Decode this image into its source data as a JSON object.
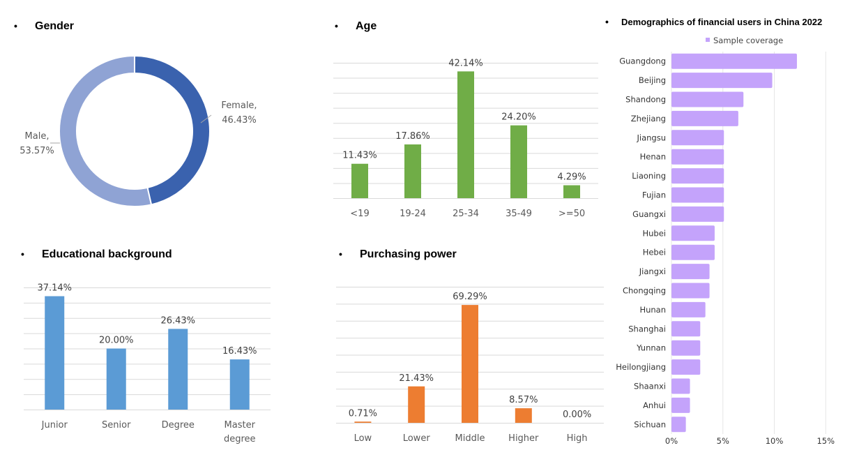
{
  "titles": {
    "gender": "Gender",
    "age": "Age",
    "education": "Educational background",
    "purchasing": "Purchasing power",
    "demographics": "Demographics of financial users in China 2022"
  },
  "bullet": "•",
  "chart_data": [
    {
      "id": "gender",
      "type": "pie",
      "variant": "donut",
      "title": "Gender",
      "slices": [
        {
          "label": "Female",
          "value": 46.43,
          "display": "46.43%",
          "color": "#3a62ae"
        },
        {
          "label": "Male",
          "value": 53.57,
          "display": "53.57%",
          "color": "#8fa3d4"
        }
      ]
    },
    {
      "id": "age",
      "type": "bar",
      "title": "Age",
      "categories": [
        "<19",
        "19-24",
        "25-34",
        "35-49",
        ">=50"
      ],
      "values": [
        11.43,
        17.86,
        42.14,
        24.2,
        4.29
      ],
      "labels": [
        "11.43%",
        "17.86%",
        "42.14%",
        "24.20%",
        "4.29%"
      ],
      "ylim": [
        0,
        45
      ],
      "grid_step": 5,
      "grid": true,
      "color": "#70ad47"
    },
    {
      "id": "education",
      "type": "bar",
      "title": "Educational background",
      "categories": [
        "Junior",
        "Senior",
        "Degree",
        "Master degree"
      ],
      "category_lines": [
        [
          "Junior"
        ],
        [
          "Senior"
        ],
        [
          "Degree"
        ],
        [
          "Master",
          "degree"
        ]
      ],
      "values": [
        37.14,
        20.0,
        26.43,
        16.43
      ],
      "labels": [
        "37.14%",
        "20.00%",
        "26.43%",
        "16.43%"
      ],
      "ylim": [
        0,
        40
      ],
      "grid_step": 5,
      "grid": true,
      "color": "#5b9bd5"
    },
    {
      "id": "purchasing",
      "type": "bar",
      "title": "Purchasing power",
      "categories": [
        "Low",
        "Lower",
        "Middle",
        "Higher",
        "High"
      ],
      "values": [
        0.71,
        21.43,
        69.29,
        8.57,
        0.0
      ],
      "labels": [
        "0.71%",
        "21.43%",
        "69.29%",
        "8.57%",
        "0.00%"
      ],
      "ylim": [
        0,
        80
      ],
      "grid_step": 10,
      "grid": true,
      "color": "#ed7d31"
    },
    {
      "id": "demographics",
      "type": "bar",
      "orientation": "horizontal",
      "title": "Demographics of financial users in China 2022",
      "legend": {
        "entries": [
          "Sample coverage"
        ],
        "placement": "top"
      },
      "categories": [
        "Guangdong",
        "Beijing",
        "Shandong",
        "Zhejiang",
        "Jiangsu",
        "Henan",
        "Liaoning",
        "Fujian",
        "Guangxi",
        "Hubei",
        "Hebei",
        "Jiangxi",
        "Chongqing",
        "Hunan",
        "Shanghai",
        "Yunnan",
        "Heilongjiang",
        "Shaanxi",
        "Anhui",
        "Sichuan"
      ],
      "series": [
        {
          "name": "Sample coverage",
          "values": [
            12.2,
            9.8,
            7.0,
            6.5,
            5.1,
            5.1,
            5.1,
            5.1,
            5.1,
            4.2,
            4.2,
            3.7,
            3.7,
            3.3,
            2.8,
            2.8,
            2.8,
            1.8,
            1.8,
            1.4
          ]
        }
      ],
      "xlim": [
        0,
        15
      ],
      "xticks": [
        0,
        5,
        10,
        15
      ],
      "xtick_labels": [
        "0%",
        "5%",
        "10%",
        "15%"
      ],
      "grid": true,
      "color": "#c4a3fb"
    }
  ]
}
